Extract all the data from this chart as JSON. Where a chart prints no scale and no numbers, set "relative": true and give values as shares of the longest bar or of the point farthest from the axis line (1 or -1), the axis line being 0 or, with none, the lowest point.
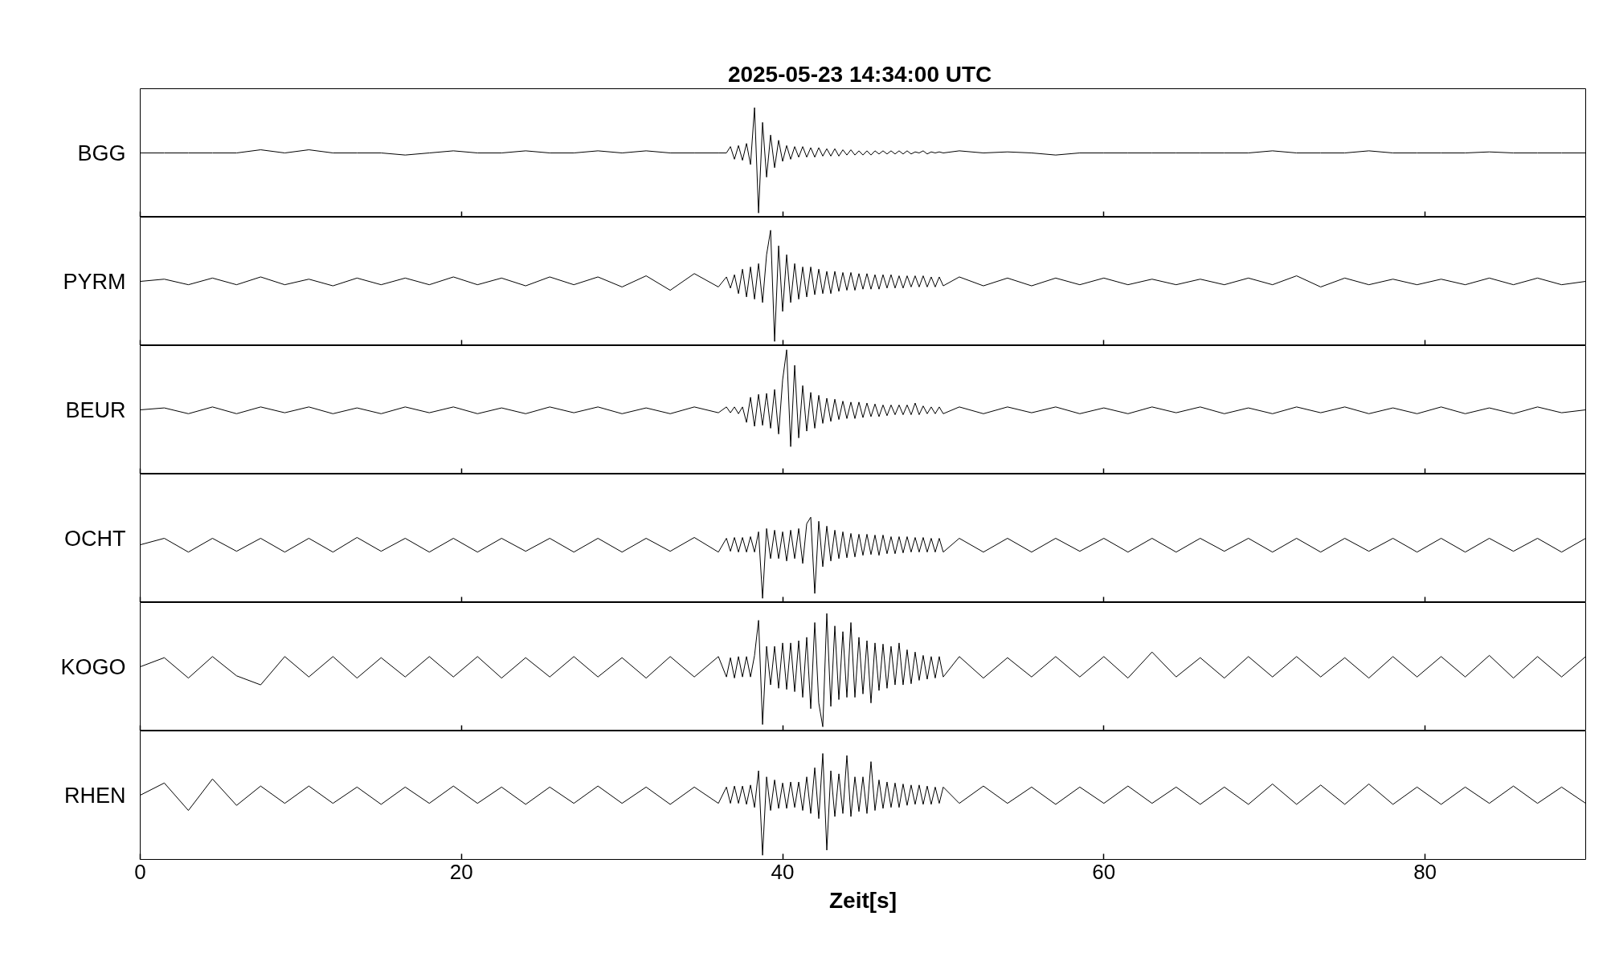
{
  "chart_data": [
    {
      "type": "line",
      "title": "2025-05-23  14:34:00 UTC",
      "ylabel": "BGG",
      "relative": true,
      "color": "#000000",
      "xlim": [
        0,
        90
      ],
      "xticks": [
        0,
        20,
        40,
        60,
        80
      ],
      "tick_labels": false,
      "x": [
        0,
        1.5,
        3,
        4.5,
        6,
        7.5,
        9,
        10.5,
        12,
        13.5,
        15,
        16.5,
        18,
        19.5,
        21,
        22.5,
        24,
        25.5,
        27,
        28.5,
        30,
        31.5,
        33,
        34.5,
        36,
        36.5,
        36.75,
        37,
        37.25,
        37.5,
        37.75,
        38,
        38.25,
        38.5,
        38.75,
        39,
        39.25,
        39.5,
        39.75,
        40,
        40.25,
        40.5,
        40.75,
        41,
        41.25,
        41.5,
        41.75,
        42,
        42.25,
        42.5,
        42.75,
        43,
        43.25,
        43.5,
        43.75,
        44,
        44.25,
        44.5,
        44.75,
        45,
        45.25,
        45.5,
        45.75,
        46,
        46.25,
        46.5,
        46.75,
        47,
        47.25,
        47.5,
        47.75,
        48,
        48.25,
        48.5,
        48.75,
        49,
        49.25,
        49.5,
        49.75,
        50,
        51,
        52.5,
        54,
        55.5,
        57,
        58.5,
        60,
        61.5,
        63,
        64.5,
        66,
        67.5,
        69,
        70.5,
        72,
        73.5,
        75,
        76.5,
        78,
        79.5,
        81,
        82.5,
        84,
        85.5,
        87,
        88.5,
        90
      ],
      "values": [
        0.57,
        0.57,
        0.57,
        0.57,
        0.57,
        0.6,
        0.57,
        0.6,
        0.57,
        0.57,
        0.57,
        0.55,
        0.57,
        0.59,
        0.57,
        0.57,
        0.59,
        0.57,
        0.57,
        0.59,
        0.57,
        0.59,
        0.57,
        0.57,
        0.57,
        0.57,
        0.63,
        0.51,
        0.64,
        0.5,
        0.66,
        0.46,
        1,
        0,
        0.86,
        0.34,
        0.74,
        0.43,
        0.69,
        0.49,
        0.64,
        0.51,
        0.63,
        0.53,
        0.63,
        0.53,
        0.62,
        0.53,
        0.62,
        0.54,
        0.61,
        0.54,
        0.61,
        0.54,
        0.6,
        0.55,
        0.6,
        0.55,
        0.59,
        0.55,
        0.59,
        0.55,
        0.59,
        0.56,
        0.59,
        0.56,
        0.59,
        0.56,
        0.59,
        0.56,
        0.59,
        0.56,
        0.58,
        0.57,
        0.59,
        0.56,
        0.58,
        0.57,
        0.58,
        0.57,
        0.59,
        0.57,
        0.58,
        0.57,
        0.55,
        0.57,
        0.57,
        0.57,
        0.57,
        0.57,
        0.57,
        0.57,
        0.57,
        0.59,
        0.57,
        0.57,
        0.57,
        0.59,
        0.57,
        0.57,
        0.57,
        0.57,
        0.58,
        0.57,
        0.57,
        0.57,
        0.57
      ]
    },
    {
      "type": "line",
      "ylabel": "PYRM",
      "relative": true,
      "color": "#000000",
      "xlim": [
        0,
        90
      ],
      "xticks": [
        0,
        20,
        40,
        60,
        80
      ],
      "tick_labels": false,
      "x": [
        0,
        1.5,
        3,
        4.5,
        6,
        7.5,
        9,
        10.5,
        12,
        13.5,
        15,
        16.5,
        18,
        19.5,
        21,
        22.5,
        24,
        25.5,
        27,
        28.5,
        30,
        31.5,
        33,
        34.5,
        36,
        36.5,
        36.75,
        37,
        37.25,
        37.5,
        37.75,
        38,
        38.25,
        38.5,
        38.75,
        39,
        39.25,
        39.5,
        39.75,
        40,
        40.25,
        40.5,
        40.75,
        41,
        41.25,
        41.5,
        41.75,
        42,
        42.25,
        42.5,
        42.75,
        43,
        43.25,
        43.5,
        43.75,
        44,
        44.25,
        44.5,
        44.75,
        45,
        45.25,
        45.5,
        45.75,
        46,
        46.25,
        46.5,
        46.75,
        47,
        47.25,
        47.5,
        47.75,
        48,
        48.25,
        48.5,
        48.75,
        49,
        49.25,
        49.5,
        49.75,
        50,
        51,
        52.5,
        54,
        55.5,
        57,
        58.5,
        60,
        61.5,
        63,
        64.5,
        66,
        67.5,
        69,
        70.5,
        72,
        73.5,
        75,
        76.5,
        78,
        79.5,
        81,
        82.5,
        84,
        85.5,
        87,
        88.5,
        90
      ],
      "values": [
        0.54,
        0.56,
        0.51,
        0.57,
        0.51,
        0.58,
        0.51,
        0.56,
        0.5,
        0.57,
        0.51,
        0.57,
        0.51,
        0.58,
        0.51,
        0.57,
        0.5,
        0.58,
        0.51,
        0.58,
        0.49,
        0.59,
        0.46,
        0.61,
        0.49,
        0.58,
        0.48,
        0.6,
        0.43,
        0.65,
        0.4,
        0.67,
        0.38,
        0.7,
        0.35,
        0.78,
        1,
        0,
        0.86,
        0.27,
        0.78,
        0.35,
        0.7,
        0.38,
        0.67,
        0.4,
        0.67,
        0.42,
        0.65,
        0.43,
        0.63,
        0.43,
        0.63,
        0.45,
        0.62,
        0.46,
        0.62,
        0.46,
        0.61,
        0.47,
        0.61,
        0.47,
        0.6,
        0.47,
        0.6,
        0.48,
        0.6,
        0.48,
        0.59,
        0.48,
        0.59,
        0.49,
        0.59,
        0.49,
        0.59,
        0.49,
        0.58,
        0.49,
        0.58,
        0.5,
        0.58,
        0.5,
        0.57,
        0.5,
        0.57,
        0.51,
        0.57,
        0.51,
        0.56,
        0.51,
        0.56,
        0.51,
        0.57,
        0.51,
        0.59,
        0.49,
        0.57,
        0.51,
        0.56,
        0.51,
        0.56,
        0.51,
        0.57,
        0.51,
        0.57,
        0.51,
        0.54
      ]
    },
    {
      "type": "line",
      "ylabel": "BEUR",
      "relative": true,
      "color": "#000000",
      "xlim": [
        0,
        90
      ],
      "xticks": [
        0,
        20,
        40,
        60,
        80
      ],
      "tick_labels": false,
      "x": [
        0,
        1.5,
        3,
        4.5,
        6,
        7.5,
        9,
        10.5,
        12,
        13.5,
        15,
        16.5,
        18,
        19.5,
        21,
        22.5,
        24,
        25.5,
        27,
        28.5,
        30,
        31.5,
        33,
        34.5,
        36,
        36.5,
        36.75,
        37,
        37.25,
        37.5,
        37.75,
        38,
        38.25,
        38.5,
        38.75,
        39,
        39.25,
        39.5,
        39.75,
        40,
        40.25,
        40.5,
        40.75,
        41,
        41.25,
        41.5,
        41.75,
        42,
        42.25,
        42.5,
        42.75,
        43,
        43.25,
        43.5,
        43.75,
        44,
        44.25,
        44.5,
        44.75,
        45,
        45.25,
        45.5,
        45.75,
        46,
        46.25,
        46.5,
        46.75,
        47,
        47.25,
        47.5,
        47.75,
        48,
        48.25,
        48.5,
        48.75,
        49,
        49.25,
        49.5,
        49.75,
        50,
        51,
        52.5,
        54,
        55.5,
        57,
        58.5,
        60,
        61.5,
        63,
        64.5,
        66,
        67.5,
        69,
        70.5,
        72,
        73.5,
        75,
        76.5,
        78,
        79.5,
        81,
        82.5,
        84,
        85.5,
        87,
        88.5,
        90
      ],
      "values": [
        0.38,
        0.4,
        0.34,
        0.41,
        0.34,
        0.41,
        0.35,
        0.41,
        0.34,
        0.4,
        0.34,
        0.41,
        0.35,
        0.41,
        0.34,
        0.4,
        0.34,
        0.41,
        0.35,
        0.41,
        0.34,
        0.4,
        0.34,
        0.41,
        0.35,
        0.41,
        0.35,
        0.41,
        0.34,
        0.41,
        0.25,
        0.51,
        0.21,
        0.54,
        0.22,
        0.55,
        0.19,
        0.59,
        0.13,
        0.69,
        1,
        0,
        0.84,
        0.09,
        0.63,
        0.16,
        0.56,
        0.19,
        0.53,
        0.24,
        0.5,
        0.26,
        0.49,
        0.28,
        0.47,
        0.29,
        0.46,
        0.29,
        0.46,
        0.3,
        0.45,
        0.31,
        0.44,
        0.31,
        0.43,
        0.32,
        0.43,
        0.33,
        0.43,
        0.33,
        0.43,
        0.33,
        0.45,
        0.33,
        0.42,
        0.34,
        0.41,
        0.34,
        0.41,
        0.34,
        0.41,
        0.34,
        0.41,
        0.35,
        0.41,
        0.34,
        0.4,
        0.34,
        0.41,
        0.35,
        0.41,
        0.34,
        0.4,
        0.34,
        0.41,
        0.35,
        0.41,
        0.34,
        0.4,
        0.34,
        0.41,
        0.34,
        0.4,
        0.34,
        0.41,
        0.35,
        0.38
      ]
    },
    {
      "type": "line",
      "ylabel": "OCHT",
      "relative": true,
      "color": "#000000",
      "xlim": [
        0,
        90
      ],
      "xticks": [
        0,
        20,
        40,
        60,
        80
      ],
      "tick_labels": false,
      "x": [
        0,
        1.5,
        3,
        4.5,
        6,
        7.5,
        9,
        10.5,
        12,
        13.5,
        15,
        16.5,
        18,
        19.5,
        21,
        22.5,
        24,
        25.5,
        27,
        28.5,
        30,
        31.5,
        33,
        34.5,
        36,
        36.5,
        36.75,
        37,
        37.25,
        37.5,
        37.75,
        38,
        38.25,
        38.5,
        38.75,
        39,
        39.25,
        39.5,
        39.75,
        40,
        40.25,
        40.5,
        40.75,
        41,
        41.25,
        41.5,
        41.75,
        42,
        42.25,
        42.5,
        42.75,
        43,
        43.25,
        43.5,
        43.75,
        44,
        44.25,
        44.5,
        44.75,
        45,
        45.25,
        45.5,
        45.75,
        46,
        46.25,
        46.5,
        46.75,
        47,
        47.25,
        47.5,
        47.75,
        48,
        48.25,
        48.5,
        48.75,
        49,
        49.25,
        49.5,
        49.75,
        50,
        51,
        52.5,
        54,
        55.5,
        57,
        58.5,
        60,
        61.5,
        63,
        64.5,
        66,
        67.5,
        69,
        70.5,
        72,
        73.5,
        75,
        76.5,
        78,
        79.5,
        81,
        82.5,
        84,
        85.5,
        87,
        88.5,
        90
      ],
      "values": [
        0.66,
        0.74,
        0.57,
        0.74,
        0.58,
        0.74,
        0.57,
        0.74,
        0.57,
        0.75,
        0.58,
        0.74,
        0.57,
        0.74,
        0.57,
        0.74,
        0.58,
        0.74,
        0.57,
        0.74,
        0.57,
        0.74,
        0.58,
        0.75,
        0.57,
        0.74,
        0.58,
        0.75,
        0.57,
        0.75,
        0.57,
        0.76,
        0.57,
        0.82,
        0,
        0.86,
        0.49,
        0.84,
        0.49,
        0.82,
        0.46,
        0.84,
        0.49,
        0.86,
        0.43,
        0.92,
        1,
        0.06,
        0.95,
        0.39,
        0.89,
        0.46,
        0.84,
        0.49,
        0.82,
        0.5,
        0.8,
        0.51,
        0.79,
        0.53,
        0.79,
        0.54,
        0.78,
        0.53,
        0.78,
        0.55,
        0.76,
        0.55,
        0.76,
        0.56,
        0.76,
        0.57,
        0.75,
        0.57,
        0.75,
        0.57,
        0.74,
        0.57,
        0.74,
        0.57,
        0.74,
        0.57,
        0.74,
        0.57,
        0.74,
        0.58,
        0.74,
        0.57,
        0.74,
        0.57,
        0.74,
        0.58,
        0.74,
        0.57,
        0.74,
        0.57,
        0.74,
        0.58,
        0.74,
        0.57,
        0.74,
        0.57,
        0.74,
        0.58,
        0.74,
        0.57,
        0.74
      ]
    },
    {
      "type": "line",
      "ylabel": "KOGO",
      "relative": true,
      "color": "#000000",
      "xlim": [
        0,
        90
      ],
      "xticks": [
        0,
        20,
        40,
        60,
        80
      ],
      "tick_labels": false,
      "x": [
        0,
        1.5,
        3,
        4.5,
        6,
        7.5,
        9,
        10.5,
        12,
        13.5,
        15,
        16.5,
        18,
        19.5,
        21,
        22.5,
        24,
        25.5,
        27,
        28.5,
        30,
        31.5,
        33,
        34.5,
        36,
        36.5,
        36.75,
        37,
        37.25,
        37.5,
        37.75,
        38,
        38.25,
        38.5,
        38.75,
        39,
        39.25,
        39.5,
        39.75,
        40,
        40.25,
        40.5,
        40.75,
        41,
        41.25,
        41.5,
        41.75,
        42,
        42.25,
        42.5,
        42.75,
        43,
        43.25,
        43.5,
        43.75,
        44,
        44.25,
        44.5,
        44.75,
        45,
        45.25,
        45.5,
        45.75,
        46,
        46.25,
        46.5,
        46.75,
        47,
        47.25,
        47.5,
        47.75,
        48,
        48.25,
        48.5,
        48.75,
        49,
        49.25,
        49.5,
        49.75,
        50,
        51,
        52.5,
        54,
        55.5,
        57,
        58.5,
        60,
        61.5,
        63,
        64.5,
        66,
        67.5,
        69,
        70.5,
        72,
        73.5,
        75,
        76.5,
        78,
        79.5,
        81,
        82.5,
        84,
        85.5,
        87,
        88.5,
        90
      ],
      "values": [
        0.53,
        0.61,
        0.43,
        0.62,
        0.45,
        0.37,
        0.62,
        0.44,
        0.62,
        0.43,
        0.61,
        0.44,
        0.62,
        0.44,
        0.62,
        0.43,
        0.61,
        0.44,
        0.62,
        0.44,
        0.61,
        0.43,
        0.62,
        0.44,
        0.62,
        0.44,
        0.61,
        0.43,
        0.62,
        0.44,
        0.62,
        0.44,
        0.63,
        0.94,
        0.02,
        0.71,
        0.37,
        0.71,
        0.34,
        0.74,
        0.33,
        0.74,
        0.31,
        0.76,
        0.26,
        0.79,
        0.16,
        0.92,
        0.21,
        0,
        1,
        0.18,
        0.89,
        0.24,
        0.84,
        0.26,
        0.92,
        0.26,
        0.79,
        0.29,
        0.76,
        0.21,
        0.74,
        0.32,
        0.73,
        0.34,
        0.71,
        0.37,
        0.74,
        0.37,
        0.68,
        0.38,
        0.66,
        0.41,
        0.63,
        0.42,
        0.62,
        0.43,
        0.62,
        0.44,
        0.62,
        0.43,
        0.61,
        0.44,
        0.62,
        0.44,
        0.62,
        0.43,
        0.66,
        0.44,
        0.61,
        0.43,
        0.62,
        0.44,
        0.62,
        0.44,
        0.61,
        0.43,
        0.62,
        0.44,
        0.62,
        0.44,
        0.63,
        0.43,
        0.62,
        0.44,
        0.62
      ]
    },
    {
      "type": "line",
      "ylabel": "RHEN",
      "xlabel": "Zeit[s]",
      "relative": true,
      "color": "#000000",
      "xlim": [
        0,
        90
      ],
      "xticks": [
        0,
        20,
        40,
        60,
        80
      ],
      "tick_labels": "x",
      "x": [
        0,
        1.5,
        3,
        4.5,
        6,
        7.5,
        9,
        10.5,
        12,
        13.5,
        15,
        16.5,
        18,
        19.5,
        21,
        22.5,
        24,
        25.5,
        27,
        28.5,
        30,
        31.5,
        33,
        34.5,
        36,
        36.5,
        36.75,
        37,
        37.25,
        37.5,
        37.75,
        38,
        38.25,
        38.5,
        38.75,
        39,
        39.25,
        39.5,
        39.75,
        40,
        40.25,
        40.5,
        40.75,
        41,
        41.25,
        41.5,
        41.75,
        42,
        42.25,
        42.5,
        42.75,
        43,
        43.25,
        43.5,
        43.75,
        44,
        44.25,
        44.5,
        44.75,
        45,
        45.25,
        45.5,
        45.75,
        46,
        46.25,
        46.5,
        46.75,
        47,
        47.25,
        47.5,
        47.75,
        48,
        48.25,
        48.5,
        48.75,
        49,
        49.25,
        49.5,
        49.75,
        50,
        51,
        52.5,
        54,
        55.5,
        57,
        58.5,
        60,
        61.5,
        63,
        64.5,
        66,
        67.5,
        69,
        70.5,
        72,
        73.5,
        75,
        76.5,
        78,
        79.5,
        81,
        82.5,
        84,
        85.5,
        87,
        88.5,
        90
      ],
      "values": [
        0.59,
        0.71,
        0.44,
        0.75,
        0.49,
        0.68,
        0.51,
        0.68,
        0.51,
        0.67,
        0.5,
        0.67,
        0.51,
        0.68,
        0.51,
        0.67,
        0.5,
        0.67,
        0.51,
        0.68,
        0.51,
        0.67,
        0.5,
        0.67,
        0.51,
        0.67,
        0.51,
        0.68,
        0.51,
        0.68,
        0.5,
        0.69,
        0.47,
        0.83,
        0,
        0.77,
        0.44,
        0.74,
        0.46,
        0.71,
        0.46,
        0.72,
        0.47,
        0.72,
        0.44,
        0.77,
        0.41,
        0.86,
        0.36,
        1,
        0.05,
        0.83,
        0.38,
        0.8,
        0.41,
        0.98,
        0.38,
        0.77,
        0.43,
        0.77,
        0.41,
        0.92,
        0.44,
        0.74,
        0.46,
        0.72,
        0.47,
        0.71,
        0.47,
        0.7,
        0.49,
        0.69,
        0.5,
        0.69,
        0.5,
        0.68,
        0.5,
        0.67,
        0.51,
        0.67,
        0.51,
        0.68,
        0.51,
        0.67,
        0.5,
        0.67,
        0.51,
        0.68,
        0.51,
        0.67,
        0.5,
        0.67,
        0.5,
        0.7,
        0.5,
        0.69,
        0.5,
        0.7,
        0.5,
        0.67,
        0.5,
        0.67,
        0.51,
        0.68,
        0.51,
        0.67,
        0.51
      ]
    }
  ]
}
